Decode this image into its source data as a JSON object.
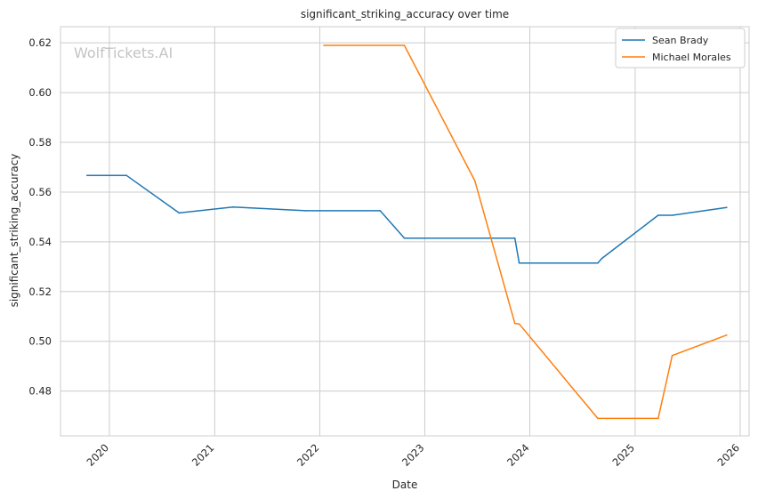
{
  "chart_data": {
    "type": "line",
    "title": "significant_striking_accuracy over time",
    "xlabel": "Date",
    "ylabel": "significant_striking_accuracy",
    "watermark": "WolfTickets.AI",
    "legend_position": "top-right",
    "grid": true,
    "xlim": [
      "2019-07-15",
      "2026-02-01"
    ],
    "ylim": [
      0.462,
      0.6265
    ],
    "x_ticks": [
      "2020",
      "2021",
      "2022",
      "2023",
      "2024",
      "2025",
      "2026"
    ],
    "y_ticks": [
      "0.48",
      "0.50",
      "0.52",
      "0.54",
      "0.56",
      "0.58",
      "0.60",
      "0.62"
    ],
    "series": [
      {
        "name": "Sean Brady",
        "color": "#1f77b4",
        "points": [
          [
            "2019-10-15",
            0.5667
          ],
          [
            "2020-02-29",
            0.5667
          ],
          [
            "2020-08-30",
            0.5516
          ],
          [
            "2021-03-06",
            0.554
          ],
          [
            "2021-11-13",
            0.5525
          ],
          [
            "2022-07-30",
            0.5525
          ],
          [
            "2022-10-22",
            0.5415
          ],
          [
            "2023-11-10",
            0.5415
          ],
          [
            "2023-11-25",
            0.5315
          ],
          [
            "2024-08-24",
            0.5315
          ],
          [
            "2024-09-07",
            0.5333
          ],
          [
            "2025-03-22",
            0.5507
          ],
          [
            "2025-05-10",
            0.5507
          ],
          [
            "2025-11-15",
            0.5538
          ]
        ]
      },
      {
        "name": "Michael Morales",
        "color": "#ff7f0e",
        "points": [
          [
            "2022-01-15",
            0.619
          ],
          [
            "2022-10-22",
            0.619
          ],
          [
            "2023-06-24",
            0.5645
          ],
          [
            "2023-11-10",
            0.5072
          ],
          [
            "2023-11-25",
            0.507
          ],
          [
            "2024-08-24",
            0.469
          ],
          [
            "2025-03-22",
            0.469
          ],
          [
            "2025-05-10",
            0.4943
          ],
          [
            "2025-11-15",
            0.5025
          ]
        ]
      }
    ]
  }
}
